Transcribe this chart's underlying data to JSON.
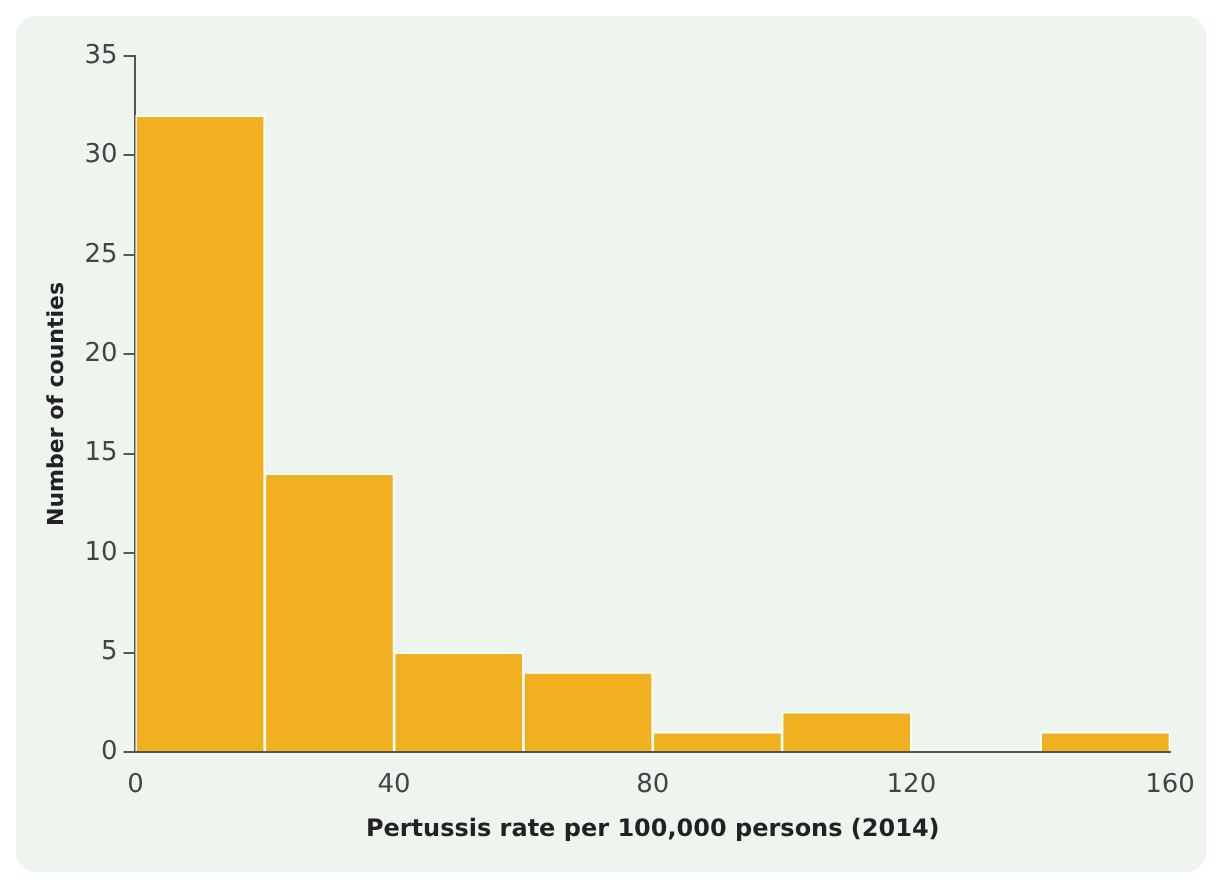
{
  "chart_data": {
    "type": "histogram",
    "xlabel": "Pertussis rate per 100,000 persons (2014)",
    "ylabel": "Number of counties",
    "bins": [
      0,
      20,
      40,
      60,
      80,
      100,
      120,
      140,
      160
    ],
    "values": [
      32,
      14,
      5,
      4,
      1,
      2,
      0,
      1
    ],
    "color": "#f0b020",
    "xlim": [
      0,
      160
    ],
    "xticks": [
      0,
      40,
      80,
      120,
      160
    ],
    "ylim": [
      0,
      35
    ],
    "yticks": [
      0,
      5,
      10,
      15,
      20,
      25,
      30,
      35
    ],
    "grid": false,
    "legend": false
  }
}
